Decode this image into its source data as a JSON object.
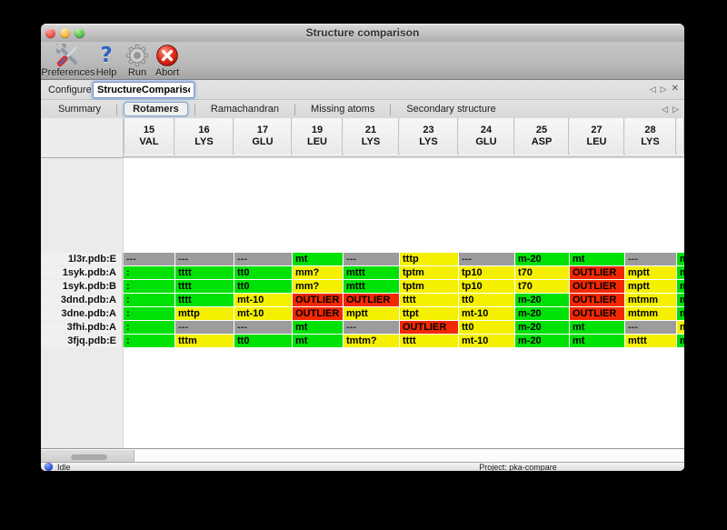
{
  "window": {
    "title": "Structure comparison"
  },
  "toolbar": {
    "items": [
      {
        "label": "Preferences",
        "icon": "tools"
      },
      {
        "label": "Help",
        "icon": "question"
      },
      {
        "label": "Run",
        "icon": "gear"
      },
      {
        "label": "Abort",
        "icon": "stop"
      }
    ]
  },
  "configure": {
    "label": "Configure",
    "value": "StructureComparison_1"
  },
  "nav_icons": {
    "back": "◁",
    "forward": "▷",
    "close": "✕"
  },
  "tabs": [
    {
      "label": "Summary",
      "selected": false
    },
    {
      "label": "Rotamers",
      "selected": true
    },
    {
      "label": "Ramachandran",
      "selected": false
    },
    {
      "label": "Missing atoms",
      "selected": false
    },
    {
      "label": "Secondary structure",
      "selected": false
    }
  ],
  "table": {
    "columns": [
      {
        "num": "15",
        "res": "VAL"
      },
      {
        "num": "16",
        "res": "LYS"
      },
      {
        "num": "17",
        "res": "GLU"
      },
      {
        "num": "19",
        "res": "LEU"
      },
      {
        "num": "21",
        "res": "LYS"
      },
      {
        "num": "23",
        "res": "LYS"
      },
      {
        "num": "24",
        "res": "GLU"
      },
      {
        "num": "25",
        "res": "ASP"
      },
      {
        "num": "27",
        "res": "LEU"
      },
      {
        "num": "28",
        "res": "LYS"
      }
    ],
    "rows": [
      {
        "name": "1l3r.pdb:E",
        "cells": [
          {
            "t": "---",
            "c": "gray"
          },
          {
            "t": "---",
            "c": "gray"
          },
          {
            "t": "---",
            "c": "gray"
          },
          {
            "t": "mt",
            "c": "green"
          },
          {
            "t": "---",
            "c": "gray"
          },
          {
            "t": "tttp",
            "c": "yellow"
          },
          {
            "t": "---",
            "c": "gray"
          },
          {
            "t": "m-20",
            "c": "green"
          },
          {
            "t": "mt",
            "c": "green"
          },
          {
            "t": "---",
            "c": "gray"
          }
        ]
      },
      {
        "name": "1syk.pdb:A",
        "cells": [
          {
            "t": ":",
            "c": "green"
          },
          {
            "t": "tttt",
            "c": "green"
          },
          {
            "t": "tt0",
            "c": "green"
          },
          {
            "t": "mm?",
            "c": "yellow"
          },
          {
            "t": "mttt",
            "c": "green"
          },
          {
            "t": "tptm",
            "c": "yellow"
          },
          {
            "t": "tp10",
            "c": "yellow"
          },
          {
            "t": "t70",
            "c": "yellow"
          },
          {
            "t": "OUTLIER",
            "c": "red"
          },
          {
            "t": "mptt",
            "c": "yellow"
          }
        ]
      },
      {
        "name": "1syk.pdb:B",
        "cells": [
          {
            "t": ":",
            "c": "green"
          },
          {
            "t": "tttt",
            "c": "green"
          },
          {
            "t": "tt0",
            "c": "green"
          },
          {
            "t": "mm?",
            "c": "yellow"
          },
          {
            "t": "mttt",
            "c": "green"
          },
          {
            "t": "tptm",
            "c": "yellow"
          },
          {
            "t": "tp10",
            "c": "yellow"
          },
          {
            "t": "t70",
            "c": "yellow"
          },
          {
            "t": "OUTLIER",
            "c": "red"
          },
          {
            "t": "mptt",
            "c": "yellow"
          }
        ]
      },
      {
        "name": "3dnd.pdb:A",
        "cells": [
          {
            "t": ":",
            "c": "green"
          },
          {
            "t": "tttt",
            "c": "green"
          },
          {
            "t": "mt-10",
            "c": "yellow"
          },
          {
            "t": "OUTLIER",
            "c": "red"
          },
          {
            "t": "OUTLIER",
            "c": "red"
          },
          {
            "t": "tttt",
            "c": "yellow"
          },
          {
            "t": "tt0",
            "c": "yellow"
          },
          {
            "t": "m-20",
            "c": "green"
          },
          {
            "t": "OUTLIER",
            "c": "red"
          },
          {
            "t": "mtmm",
            "c": "yellow"
          }
        ]
      },
      {
        "name": "3dne.pdb:A",
        "cells": [
          {
            "t": ":",
            "c": "green"
          },
          {
            "t": "mttp",
            "c": "yellow"
          },
          {
            "t": "mt-10",
            "c": "yellow"
          },
          {
            "t": "OUTLIER",
            "c": "red"
          },
          {
            "t": "mptt",
            "c": "yellow"
          },
          {
            "t": "ttpt",
            "c": "yellow"
          },
          {
            "t": "mt-10",
            "c": "yellow"
          },
          {
            "t": "m-20",
            "c": "green"
          },
          {
            "t": "OUTLIER",
            "c": "red"
          },
          {
            "t": "mtmm",
            "c": "yellow"
          }
        ]
      },
      {
        "name": "3fhi.pdb:A",
        "cells": [
          {
            "t": ":",
            "c": "green"
          },
          {
            "t": "---",
            "c": "gray"
          },
          {
            "t": "---",
            "c": "gray"
          },
          {
            "t": "mt",
            "c": "green"
          },
          {
            "t": "---",
            "c": "gray"
          },
          {
            "t": "OUTLIER",
            "c": "red"
          },
          {
            "t": "tt0",
            "c": "yellow"
          },
          {
            "t": "m-20",
            "c": "green"
          },
          {
            "t": "mt",
            "c": "green"
          },
          {
            "t": "---",
            "c": "gray"
          }
        ]
      },
      {
        "name": "3fjq.pdb:E",
        "cells": [
          {
            "t": ":",
            "c": "green"
          },
          {
            "t": "tttm",
            "c": "yellow"
          },
          {
            "t": "tt0",
            "c": "green"
          },
          {
            "t": "mt",
            "c": "green"
          },
          {
            "t": "tmtm?",
            "c": "yellow"
          },
          {
            "t": "tttt",
            "c": "yellow"
          },
          {
            "t": "mt-10",
            "c": "yellow"
          },
          {
            "t": "m-20",
            "c": "green"
          },
          {
            "t": "mt",
            "c": "green"
          },
          {
            "t": "mttt",
            "c": "yellow"
          }
        ]
      }
    ],
    "partial_column": {
      "header": "",
      "cells": [
        {
          "t": "m",
          "c": "green"
        },
        {
          "t": "m",
          "c": "green"
        },
        {
          "t": "m",
          "c": "green"
        },
        {
          "t": "m",
          "c": "green"
        },
        {
          "t": "m",
          "c": "green"
        },
        {
          "t": "m",
          "c": "yellow"
        },
        {
          "t": "m",
          "c": "green"
        }
      ]
    }
  },
  "statusbar": {
    "state": "Idle",
    "project": "Project: pka-compare"
  },
  "colors": {
    "green": "#00e106",
    "yellow": "#f4f000",
    "red": "#f22800",
    "gray": "#9c9c9c"
  }
}
